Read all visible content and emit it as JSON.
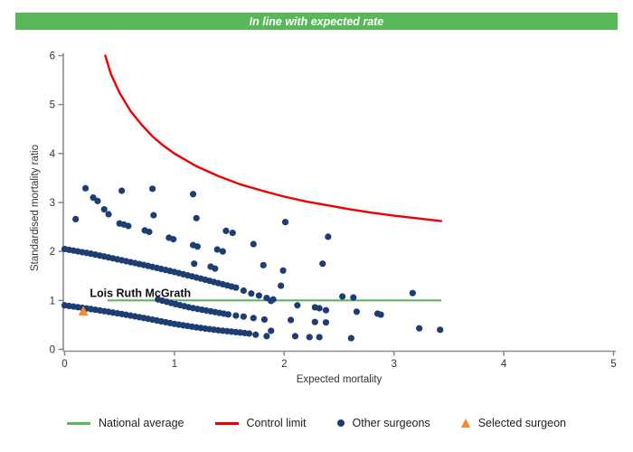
{
  "chart_data": {
    "type": "scatter",
    "banner": {
      "text": "In line with expected rate",
      "bg": "#57b857"
    },
    "axes": {
      "xlabel": "Expected mortality",
      "ylabel": "Standardised mortality ratio",
      "xlim": [
        0,
        5
      ],
      "ylim": [
        0,
        6
      ],
      "xticks": [
        0,
        1,
        2,
        3,
        4,
        5
      ],
      "yticks": [
        0,
        1,
        2,
        3,
        4,
        5,
        6
      ],
      "color": "#8c8c8c",
      "tick_text_color": "#333333",
      "grid": false
    },
    "national_average": {
      "label": "National average",
      "y": 1.0,
      "x_start": 0.39,
      "x_end": 3.43,
      "color": "#5cb85c"
    },
    "control_limit": {
      "label": "Control limit",
      "color": "#ee0000",
      "points": [
        [
          0.37,
          6.0
        ],
        [
          0.42,
          5.63
        ],
        [
          0.5,
          5.24
        ],
        [
          0.6,
          4.87
        ],
        [
          0.7,
          4.59
        ],
        [
          0.8,
          4.35
        ],
        [
          0.9,
          4.16
        ],
        [
          1.0,
          4.0
        ],
        [
          1.2,
          3.74
        ],
        [
          1.4,
          3.54
        ],
        [
          1.6,
          3.37
        ],
        [
          1.8,
          3.24
        ],
        [
          2.0,
          3.12
        ],
        [
          2.2,
          3.02
        ],
        [
          2.4,
          2.94
        ],
        [
          2.6,
          2.86
        ],
        [
          2.8,
          2.79
        ],
        [
          3.0,
          2.73
        ],
        [
          3.2,
          2.68
        ],
        [
          3.43,
          2.62
        ]
      ]
    },
    "other_surgeons": {
      "label": "Other surgeons",
      "color": "#1c3e72",
      "bands": [
        {
          "x_start": 0.0,
          "x_end": 1.58,
          "step": 0.04,
          "controls": [
            [
              0,
              2.05
            ],
            [
              0.25,
              1.95
            ],
            [
              0.5,
              1.83
            ],
            [
              0.75,
              1.71
            ],
            [
              1,
              1.58
            ],
            [
              1.25,
              1.44
            ],
            [
              1.58,
              1.25
            ]
          ]
        },
        {
          "x_start": 0.85,
          "x_end": 1.5,
          "step": 0.04,
          "controls": [
            [
              0.85,
              1.02
            ],
            [
              1,
              0.93
            ],
            [
              1.15,
              0.85
            ],
            [
              1.3,
              0.79
            ],
            [
              1.5,
              0.71
            ]
          ]
        },
        {
          "x_start": 0.0,
          "x_end": 1.7,
          "step": 0.04,
          "controls": [
            [
              0,
              0.9
            ],
            [
              0.25,
              0.82
            ],
            [
              0.5,
              0.73
            ],
            [
              0.75,
              0.63
            ],
            [
              1,
              0.52
            ],
            [
              1.2,
              0.45
            ],
            [
              1.4,
              0.39
            ],
            [
              1.7,
              0.32
            ]
          ]
        }
      ],
      "points": [
        [
          0.5,
          2.57
        ],
        [
          0.54,
          2.55
        ],
        [
          0.58,
          2.52
        ],
        [
          0.73,
          2.43
        ],
        [
          0.77,
          2.4
        ],
        [
          0.95,
          2.28
        ],
        [
          0.99,
          2.25
        ],
        [
          1.17,
          2.13
        ],
        [
          1.21,
          2.1
        ],
        [
          1.39,
          2.04
        ],
        [
          1.44,
          2.0
        ],
        [
          0.19,
          3.29
        ],
        [
          0.52,
          3.24
        ],
        [
          0.8,
          3.28
        ],
        [
          1.17,
          3.17
        ],
        [
          0.26,
          3.1
        ],
        [
          0.3,
          3.03
        ],
        [
          0.36,
          2.86
        ],
        [
          0.4,
          2.76
        ],
        [
          0.1,
          2.66
        ],
        [
          0.81,
          2.74
        ],
        [
          1.2,
          2.68
        ],
        [
          1.47,
          2.42
        ],
        [
          1.53,
          2.38
        ],
        [
          2.01,
          2.6
        ],
        [
          2.4,
          2.3
        ],
        [
          1.72,
          2.15
        ],
        [
          2.35,
          1.75
        ],
        [
          1.81,
          1.72
        ],
        [
          1.99,
          1.61
        ],
        [
          1.97,
          1.3
        ],
        [
          1.18,
          1.75
        ],
        [
          1.33,
          1.69
        ],
        [
          1.37,
          1.65
        ],
        [
          1.63,
          1.2
        ],
        [
          1.7,
          1.14
        ],
        [
          1.77,
          1.1
        ],
        [
          1.84,
          1.05
        ],
        [
          1.9,
          1.02
        ],
        [
          1.88,
          0.99
        ],
        [
          2.53,
          1.08
        ],
        [
          2.63,
          1.06
        ],
        [
          3.17,
          1.15
        ],
        [
          2.12,
          0.9
        ],
        [
          2.28,
          0.86
        ],
        [
          2.32,
          0.84
        ],
        [
          2.38,
          0.8
        ],
        [
          2.66,
          0.77
        ],
        [
          2.85,
          0.73
        ],
        [
          2.88,
          0.71
        ],
        [
          1.56,
          0.69
        ],
        [
          1.63,
          0.67
        ],
        [
          1.72,
          0.64
        ],
        [
          1.82,
          0.61
        ],
        [
          2.06,
          0.6
        ],
        [
          2.28,
          0.56
        ],
        [
          2.38,
          0.55
        ],
        [
          1.74,
          0.3
        ],
        [
          1.84,
          0.27
        ],
        [
          1.88,
          0.38
        ],
        [
          2.1,
          0.27
        ],
        [
          2.23,
          0.25
        ],
        [
          2.32,
          0.25
        ],
        [
          2.61,
          0.23
        ],
        [
          3.23,
          0.43
        ],
        [
          3.42,
          0.4
        ]
      ]
    },
    "selected_surgeon": {
      "label": "Selected surgeon",
      "name": "Lois Ruth McGrath",
      "x": 0.17,
      "y": 0.78,
      "name_anchor": [
        0.69,
        1.07
      ],
      "color": "#f68b28"
    },
    "legend": {
      "items": [
        {
          "label": "National average",
          "type": "line",
          "color": "#5cb85c"
        },
        {
          "label": "Control limit",
          "type": "line",
          "color": "#ee0000"
        },
        {
          "label": "Other surgeons",
          "type": "dot",
          "color": "#1c3e72"
        },
        {
          "label": "Selected surgeon",
          "type": "triangle",
          "color": "#f68b28"
        }
      ]
    }
  }
}
